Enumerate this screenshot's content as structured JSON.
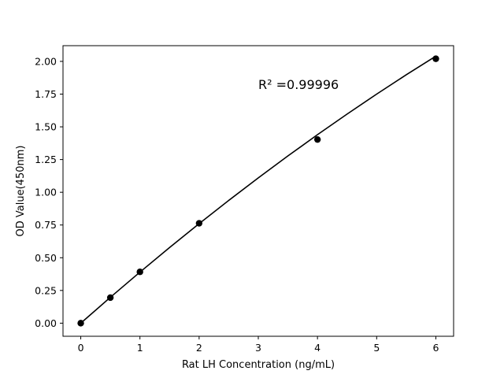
{
  "chart_data": {
    "type": "scatter",
    "title": "",
    "xlabel": "Rat LH Concentration (ng/mL)",
    "ylabel": "OD Value(450nm)",
    "xlim": [
      -0.3,
      6.3
    ],
    "ylim": [
      -0.1,
      2.12
    ],
    "x_ticks": [
      0,
      1,
      2,
      3,
      4,
      5,
      6
    ],
    "x_tick_labels": [
      "0",
      "1",
      "2",
      "3",
      "4",
      "5",
      "6"
    ],
    "y_ticks": [
      0.0,
      0.25,
      0.5,
      0.75,
      1.0,
      1.25,
      1.5,
      1.75,
      2.0
    ],
    "y_tick_labels": [
      "0.00",
      "0.25",
      "0.50",
      "0.75",
      "1.00",
      "1.25",
      "1.50",
      "1.75",
      "2.00"
    ],
    "grid": false,
    "legend": "none",
    "series": [
      {
        "x": [
          0,
          0.5,
          1,
          2,
          4,
          6
        ],
        "y": [
          0.0,
          0.195,
          0.392,
          0.763,
          1.403,
          2.02
        ],
        "marker": "circle",
        "color": "#000000"
      }
    ],
    "fit_curve": {
      "x": [
        0,
        0.5,
        1,
        1.5,
        2,
        2.5,
        3,
        3.5,
        4,
        4.5,
        5,
        5.5,
        6
      ],
      "y": [
        0.0,
        0.1975,
        0.39,
        0.5775,
        0.76,
        0.9375,
        1.11,
        1.2775,
        1.44,
        1.5975,
        1.75,
        1.8975,
        2.04
      ],
      "color": "#000000"
    },
    "annotation": {
      "text": "R² =0.99996",
      "x": 3.0,
      "y": 1.82
    }
  }
}
